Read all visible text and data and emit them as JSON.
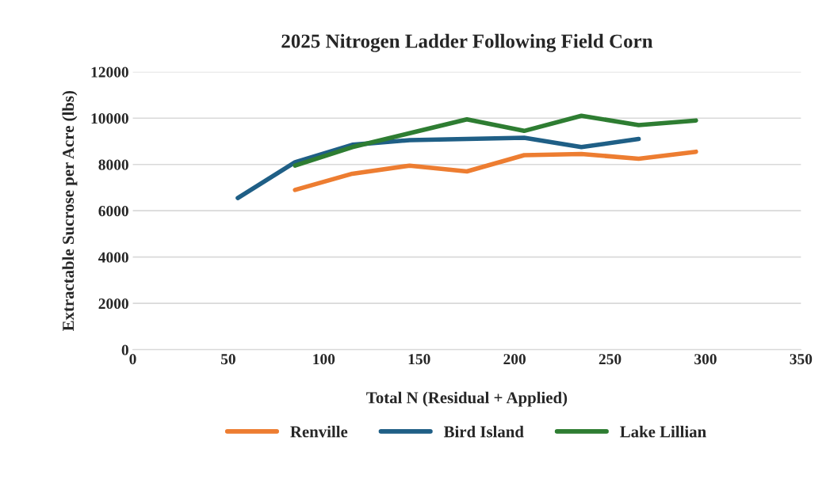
{
  "chart_data": {
    "type": "line",
    "title": "2025 Nitrogen Ladder Following Field Corn",
    "xlabel": "Total N (Residual + Applied)",
    "ylabel": "Extractable Sucrose per Acre (lbs)",
    "xlim": [
      0,
      350
    ],
    "xticks": [
      0,
      50,
      100,
      150,
      200,
      250,
      300,
      350
    ],
    "ylim": [
      0,
      12000
    ],
    "yticks": [
      0,
      2000,
      4000,
      6000,
      8000,
      10000,
      12000
    ],
    "grid": "y",
    "legend": "bottom",
    "marker": "none",
    "line_style": "solid",
    "series": [
      {
        "name": "Renville",
        "color": "#ed7d31",
        "x": [
          85,
          115,
          145,
          175,
          205,
          235,
          265,
          295
        ],
        "values": [
          6900,
          7600,
          7950,
          7700,
          8400,
          8450,
          8250,
          8550
        ]
      },
      {
        "name": "Bird Island",
        "color": "#1f5f86",
        "x": [
          55,
          85,
          115,
          145,
          175,
          205,
          235,
          265
        ],
        "values": [
          6550,
          8100,
          8850,
          9050,
          9100,
          9150,
          8750,
          9100
        ]
      },
      {
        "name": "Lake Lillian",
        "color": "#2e7d32",
        "x": [
          85,
          115,
          145,
          175,
          205,
          235,
          265,
          295
        ],
        "values": [
          7950,
          8750,
          9350,
          9950,
          9450,
          10100,
          9700,
          9900
        ]
      }
    ]
  }
}
